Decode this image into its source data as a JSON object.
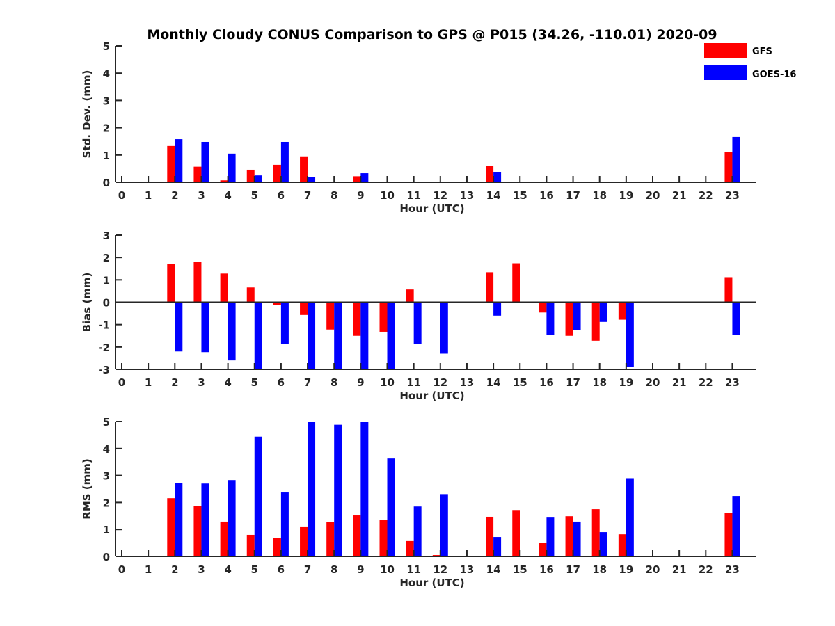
{
  "chart_data": {
    "type": "bar",
    "title": "Monthly Cloudy CONUS Comparison to GPS @ P015 (34.26, -110.01) 2020-09",
    "legend": {
      "placement": "top-right",
      "entries": [
        {
          "name": "GFS",
          "color": "#ff0000"
        },
        {
          "name": "GOES-16",
          "color": "#0000ff"
        }
      ]
    },
    "categories": [
      "0",
      "1",
      "2",
      "3",
      "4",
      "5",
      "6",
      "7",
      "8",
      "9",
      "10",
      "11",
      "12",
      "13",
      "14",
      "15",
      "16",
      "17",
      "18",
      "19",
      "20",
      "21",
      "22",
      "23"
    ],
    "panels": [
      {
        "id": "stddev",
        "ylabel": "Std. Dev. (mm)",
        "xlabel": "Hour (UTC)",
        "ylim": [
          0,
          5
        ],
        "yticks": [
          0,
          1,
          2,
          3,
          4,
          5
        ],
        "series": [
          {
            "name": "GFS",
            "color": "#ff0000",
            "values": [
              0,
              0,
              1.33,
              0.57,
              0.07,
              0.46,
              0.64,
              0.95,
              0,
              0.22,
              0,
              0,
              0,
              0,
              0.59,
              0,
              0,
              0,
              0,
              0,
              0,
              0,
              0,
              1.1
            ]
          },
          {
            "name": "GOES-16",
            "color": "#0000ff",
            "values": [
              0,
              0,
              1.58,
              1.48,
              1.05,
              0.25,
              1.48,
              0.2,
              0,
              0.33,
              0,
              0,
              0,
              0,
              0.38,
              0,
              0,
              0,
              0,
              0,
              0,
              0,
              0,
              1.66
            ]
          }
        ]
      },
      {
        "id": "bias",
        "ylabel": "Bias (mm)",
        "xlabel": "Hour (UTC)",
        "ylim": [
          -3,
          3
        ],
        "yticks": [
          -3,
          -2,
          -1,
          0,
          1,
          2,
          3
        ],
        "zero_line": true,
        "series": [
          {
            "name": "GFS",
            "color": "#ff0000",
            "values": [
              0,
              0,
              1.71,
              1.8,
              1.28,
              0.66,
              -0.13,
              -0.57,
              -1.22,
              -1.5,
              -1.32,
              0.57,
              -0.02,
              0,
              1.34,
              1.74,
              -0.46,
              -1.5,
              -1.72,
              -0.78,
              0,
              0,
              0,
              1.12
            ]
          },
          {
            "name": "GOES-16",
            "color": "#0000ff",
            "values": [
              0,
              0,
              -2.2,
              -2.23,
              -2.6,
              -3.0,
              -1.85,
              -3.0,
              -3.0,
              -3.0,
              -3.0,
              -1.85,
              -2.3,
              0,
              -0.6,
              0.02,
              -1.45,
              -1.25,
              -0.88,
              -2.89,
              0,
              0,
              0,
              -1.47
            ]
          }
        ]
      },
      {
        "id": "rms",
        "ylabel": "RMS (mm)",
        "xlabel": "Hour (UTC)",
        "ylim": [
          0,
          5
        ],
        "yticks": [
          0,
          1,
          2,
          3,
          4,
          5
        ],
        "series": [
          {
            "name": "GFS",
            "color": "#ff0000",
            "values": [
              0,
              0,
              2.16,
              1.88,
              1.29,
              0.8,
              0.67,
              1.11,
              1.27,
              1.52,
              1.34,
              0.57,
              0.05,
              0,
              1.47,
              1.72,
              0.49,
              1.49,
              1.75,
              0.82,
              0,
              0,
              0,
              1.6
            ]
          },
          {
            "name": "GOES-16",
            "color": "#0000ff",
            "values": [
              0,
              0,
              2.73,
              2.7,
              2.83,
              4.44,
              2.37,
              5.0,
              4.88,
              5.0,
              3.63,
              1.85,
              2.31,
              0,
              0.72,
              0.02,
              1.44,
              1.29,
              0.9,
              2.9,
              0,
              0,
              0,
              2.24
            ]
          }
        ]
      }
    ]
  }
}
